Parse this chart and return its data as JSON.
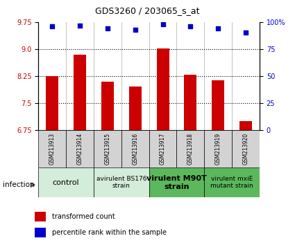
{
  "title": "GDS3260 / 203065_s_at",
  "samples": [
    "GSM213913",
    "GSM213914",
    "GSM213915",
    "GSM213916",
    "GSM213917",
    "GSM213918",
    "GSM213919",
    "GSM213920"
  ],
  "bar_values": [
    8.25,
    8.85,
    8.1,
    7.95,
    9.02,
    8.28,
    8.12,
    7.0
  ],
  "scatter_values": [
    96,
    97,
    94,
    93,
    98,
    96,
    94,
    90
  ],
  "ylim_left": [
    6.75,
    9.75
  ],
  "ylim_right": [
    0,
    100
  ],
  "yticks_left": [
    6.75,
    7.5,
    8.25,
    9.0,
    9.75
  ],
  "yticks_right": [
    0,
    25,
    50,
    75,
    100
  ],
  "bar_color": "#cc0000",
  "scatter_color": "#0000cc",
  "grid_yticks": [
    7.5,
    8.25,
    9.0
  ],
  "groups": [
    {
      "label": "control",
      "start": 0,
      "end": 2,
      "color": "#d4edda",
      "fontsize": 8,
      "bold": false
    },
    {
      "label": "avirulent BS176\nstrain",
      "start": 2,
      "end": 4,
      "color": "#d4edda",
      "fontsize": 6.5,
      "bold": false
    },
    {
      "label": "virulent M90T\nstrain",
      "start": 4,
      "end": 6,
      "color": "#5cb85c",
      "fontsize": 8,
      "bold": true
    },
    {
      "label": "virulent mxiE\nmutant strain",
      "start": 6,
      "end": 8,
      "color": "#5cb85c",
      "fontsize": 6.5,
      "bold": false
    }
  ],
  "infection_label": "infection",
  "legend_bar_label": "transformed count",
  "legend_scatter_label": "percentile rank within the sample",
  "left_color": "#cc0000",
  "right_color": "#0000cc",
  "sample_bg_color": "#d3d3d3"
}
